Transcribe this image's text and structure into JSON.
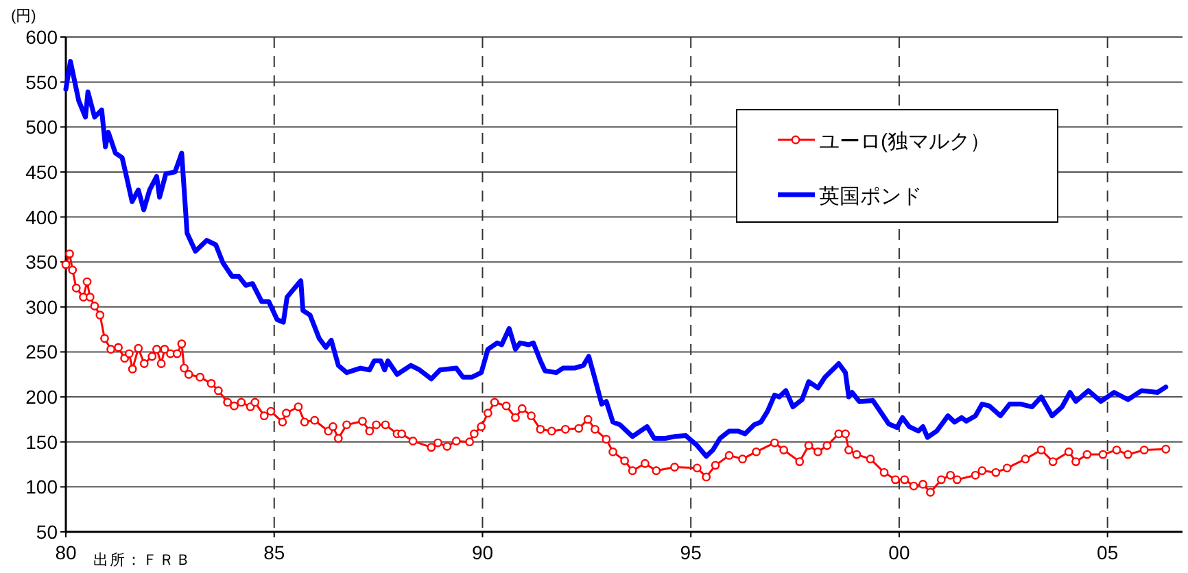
{
  "chart_data": {
    "type": "line",
    "ylabel": "(円)",
    "annotations": [
      "出所：ＦＲＢ"
    ],
    "xlim": [
      1980,
      2006.8
    ],
    "xticks": [
      {
        "value": 1980,
        "label": "80"
      },
      {
        "value": 1985,
        "label": "85"
      },
      {
        "value": 1990,
        "label": "90"
      },
      {
        "value": 1995,
        "label": "95"
      },
      {
        "value": 2000,
        "label": "00"
      },
      {
        "value": 2005,
        "label": "05"
      }
    ],
    "ylim": [
      50,
      600
    ],
    "yticks": [
      50,
      100,
      150,
      200,
      250,
      300,
      350,
      400,
      450,
      500,
      550,
      600
    ],
    "grid": true,
    "legend": "top right",
    "series": [
      {
        "name": "ユーロ(独マルク）",
        "color": "#ff0000",
        "marker": "circle",
        "x": [
          1980.0,
          1980.09,
          1980.16,
          1980.25,
          1980.42,
          1980.51,
          1980.58,
          1980.69,
          1980.82,
          1980.93,
          1981.08,
          1981.26,
          1981.41,
          1981.52,
          1981.6,
          1981.74,
          1981.88,
          1982.07,
          1982.18,
          1982.29,
          1982.37,
          1982.51,
          1982.67,
          1982.78,
          1982.84,
          1982.95,
          1983.22,
          1983.49,
          1983.66,
          1983.88,
          1984.04,
          1984.21,
          1984.43,
          1984.54,
          1984.76,
          1984.92,
          1985.2,
          1985.29,
          1985.58,
          1985.73,
          1985.97,
          1986.3,
          1986.41,
          1986.54,
          1986.74,
          1987.12,
          1987.29,
          1987.45,
          1987.67,
          1987.95,
          1988.06,
          1988.33,
          1988.77,
          1988.93,
          1989.15,
          1989.37,
          1989.69,
          1989.8,
          1989.97,
          1990.13,
          1990.29,
          1990.57,
          1990.79,
          1990.95,
          1991.17,
          1991.39,
          1991.66,
          1991.99,
          1992.31,
          1992.53,
          1992.7,
          1992.97,
          1993.13,
          1993.41,
          1993.6,
          1993.9,
          1994.17,
          1994.61,
          1995.15,
          1995.37,
          1995.59,
          1995.92,
          1996.24,
          1996.57,
          1997.01,
          1997.23,
          1997.61,
          1997.83,
          1998.05,
          1998.27,
          1998.55,
          1998.71,
          1998.79,
          1998.98,
          1999.31,
          1999.64,
          1999.91,
          2000.13,
          2000.35,
          2000.57,
          2000.75,
          2001.01,
          2001.23,
          2001.39,
          2001.83,
          2001.99,
          2002.32,
          2002.59,
          2003.03,
          2003.41,
          2003.69,
          2004.07,
          2004.24,
          2004.51,
          2004.89,
          2005.22,
          2005.49,
          2005.88,
          2006.4
        ],
        "values": [
          347,
          359,
          341,
          321,
          311,
          328,
          311,
          301,
          291,
          265,
          253,
          255,
          243,
          248,
          231,
          254,
          237,
          245,
          253,
          237,
          253,
          248,
          248,
          259,
          232,
          225,
          222,
          215,
          207,
          194,
          190,
          194,
          189,
          194,
          179,
          184,
          172,
          182,
          189,
          172,
          174,
          162,
          167,
          154,
          169,
          173,
          162,
          169,
          169,
          159,
          159,
          151,
          144,
          149,
          145,
          151,
          150,
          159,
          167,
          182,
          194,
          190,
          177,
          187,
          179,
          164,
          162,
          164,
          165,
          175,
          164,
          153,
          139,
          129,
          118,
          126,
          118,
          122,
          121,
          111,
          124,
          135,
          131,
          139,
          149,
          141,
          128,
          146,
          139,
          146,
          159,
          159,
          141,
          136,
          131,
          116,
          108,
          108,
          101,
          103,
          94,
          108,
          113,
          108,
          113,
          118,
          116,
          121,
          131,
          141,
          128,
          139,
          128,
          136,
          136,
          141,
          136,
          141,
          142
        ]
      },
      {
        "name": "英国ポンド",
        "color": "#0000ff",
        "x": [
          1980.0,
          1980.11,
          1980.31,
          1980.47,
          1980.53,
          1980.69,
          1980.86,
          1980.95,
          1981.02,
          1981.19,
          1981.35,
          1981.44,
          1981.59,
          1981.74,
          1981.87,
          1982.01,
          1982.18,
          1982.25,
          1982.4,
          1982.62,
          1982.78,
          1982.91,
          1983.11,
          1983.38,
          1983.6,
          1983.77,
          1983.99,
          1984.15,
          1984.32,
          1984.48,
          1984.7,
          1984.87,
          1985.07,
          1985.22,
          1985.31,
          1985.58,
          1985.64,
          1985.69,
          1985.86,
          1986.08,
          1986.24,
          1986.37,
          1986.54,
          1986.74,
          1987.07,
          1987.29,
          1987.4,
          1987.56,
          1987.65,
          1987.73,
          1987.95,
          1988.28,
          1988.49,
          1988.77,
          1988.98,
          1989.37,
          1989.53,
          1989.75,
          1989.97,
          1990.13,
          1990.35,
          1990.46,
          1990.64,
          1990.79,
          1990.9,
          1991.11,
          1991.22,
          1991.39,
          1991.5,
          1991.77,
          1991.93,
          1992.21,
          1992.42,
          1992.55,
          1992.7,
          1992.86,
          1992.97,
          1993.13,
          1993.3,
          1993.6,
          1993.79,
          1993.95,
          1994.12,
          1994.39,
          1994.61,
          1994.88,
          1995.15,
          1995.37,
          1995.53,
          1995.7,
          1995.92,
          1996.14,
          1996.3,
          1996.52,
          1996.68,
          1996.84,
          1997.01,
          1997.12,
          1997.28,
          1997.45,
          1997.67,
          1997.83,
          1998.05,
          1998.22,
          1998.55,
          1998.71,
          1998.79,
          1998.87,
          1999.04,
          1999.37,
          1999.53,
          1999.75,
          1999.95,
          2000.08,
          2000.24,
          2000.46,
          2000.57,
          2000.68,
          2000.9,
          2001.06,
          2001.17,
          2001.33,
          2001.5,
          2001.61,
          2001.83,
          2001.99,
          2002.16,
          2002.43,
          2002.65,
          2002.92,
          2003.19,
          2003.41,
          2003.67,
          2003.91,
          2004.1,
          2004.24,
          2004.54,
          2004.84,
          2005.16,
          2005.49,
          2005.82,
          2006.2,
          2006.4
        ],
        "values": [
          542,
          573,
          529,
          511,
          539,
          511,
          519,
          478,
          494,
          471,
          466,
          448,
          417,
          430,
          408,
          430,
          445,
          422,
          448,
          450,
          471,
          382,
          362,
          374,
          369,
          349,
          334,
          334,
          324,
          326,
          306,
          306,
          286,
          283,
          311,
          326,
          329,
          296,
          291,
          265,
          255,
          263,
          235,
          227,
          232,
          230,
          240,
          240,
          230,
          240,
          225,
          235,
          230,
          220,
          230,
          232,
          222,
          222,
          227,
          253,
          260,
          258,
          276,
          253,
          260,
          258,
          260,
          240,
          229,
          227,
          232,
          232,
          235,
          245,
          220,
          192,
          195,
          172,
          169,
          156,
          162,
          167,
          154,
          154,
          156,
          157,
          146,
          134,
          141,
          154,
          162,
          162,
          159,
          169,
          172,
          184,
          202,
          200,
          207,
          189,
          197,
          217,
          210,
          222,
          237,
          227,
          200,
          205,
          195,
          196,
          185,
          170,
          166,
          177,
          167,
          162,
          167,
          155,
          162,
          172,
          179,
          172,
          177,
          173,
          179,
          192,
          190,
          179,
          192,
          192,
          189,
          200,
          179,
          189,
          205,
          195,
          207,
          195,
          205,
          197,
          207,
          205,
          211
        ]
      }
    ]
  }
}
